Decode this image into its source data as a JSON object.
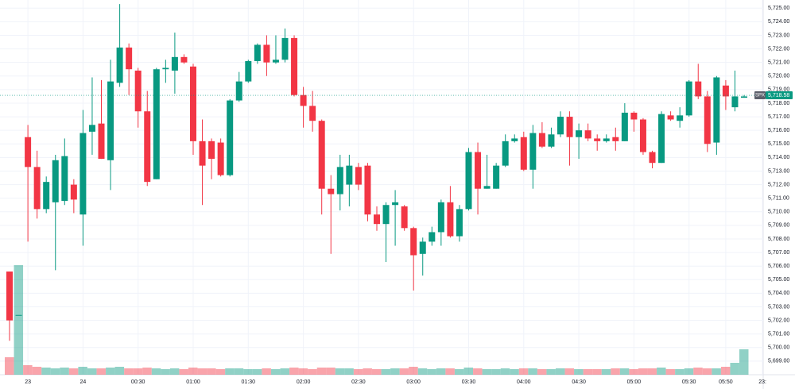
{
  "chart_data": {
    "type": "candlestick",
    "symbol": "SPX",
    "last_price": {
      "value": 5718.58,
      "label": "5,718.58"
    },
    "up_color": "#089981",
    "down_color": "#f23645",
    "grid": true,
    "categories": [
      null,
      null,
      "23",
      null,
      null,
      null,
      null,
      null,
      "24",
      null,
      null,
      null,
      null,
      null,
      "00:30",
      null,
      null,
      null,
      null,
      null,
      "01:00",
      null,
      null,
      null,
      null,
      null,
      "01:30",
      null,
      null,
      null,
      null,
      null,
      "02:00",
      null,
      null,
      null,
      null,
      null,
      "02:30",
      null,
      null,
      null,
      null,
      null,
      "03:00",
      null,
      null,
      null,
      null,
      null,
      "03:30",
      null,
      null,
      null,
      null,
      null,
      "04:00",
      null,
      null,
      null,
      null,
      null,
      "04:30",
      null,
      null,
      null,
      null,
      null,
      "05:00",
      null,
      null,
      null,
      null,
      null,
      "05:30",
      null,
      null,
      null,
      "05:50",
      null,
      null,
      null,
      "23:"
    ],
    "open": [
      5705.6,
      5702.4,
      5715.5,
      5713.3,
      5710.2,
      5710.7,
      5710.8,
      5712.0,
      5709.8,
      5715.9,
      5716.5,
      5713.8,
      5719.5,
      5722.1,
      5720.4,
      5717.4,
      5712.4,
      5720.5,
      5720.4,
      5721.4,
      5720.7,
      5715.2,
      5715.2,
      5715.1,
      5712.7,
      5718.2,
      5719.6,
      5721.1,
      5722.3,
      5721.0,
      5721.2,
      5722.8,
      5718.6,
      5717.8,
      5716.7,
      5711.7,
      5711.3,
      5712.0,
      5713.3,
      5713.4,
      5709.8,
      5709.1,
      5710.5,
      5710.4,
      5708.8,
      5706.9,
      5707.8,
      5708.5,
      5710.7,
      5708.2,
      5710.2,
      5714.4,
      5711.7,
      5711.7,
      5713.4,
      5715.2,
      5715.5,
      5713.1,
      5715.8,
      5714.8,
      5715.7,
      5717.0,
      5715.5,
      5716.0,
      5715.4,
      5715.2,
      5715.5,
      5715.2,
      5717.3,
      5716.8,
      5714.4,
      5713.6,
      5717.1,
      5716.7,
      5717.1,
      5719.6,
      5718.5,
      5715.1,
      5719.3,
      5717.7,
      5718.4,
      null,
      null
    ],
    "high": [
      5705.6,
      5702.4,
      5716.4,
      5714.5,
      5712.6,
      5714.2,
      5715.4,
      5712.4,
      5717.5,
      5719.9,
      5719.7,
      5721.2,
      5725.3,
      5722.4,
      5720.6,
      5718.9,
      5720.6,
      5721.2,
      5723.2,
      5721.6,
      5720.9,
      5716.8,
      5715.4,
      5715.4,
      5718.3,
      5720.3,
      5721.2,
      5722.4,
      5723.0,
      5723.0,
      5723.5,
      5723.0,
      5719.2,
      5718.9,
      5716.8,
      5712.7,
      5714.2,
      5714.2,
      5713.6,
      5713.6,
      5710.4,
      5710.7,
      5711.6,
      5710.5,
      5708.9,
      5708.1,
      5708.9,
      5710.9,
      5711.9,
      5710.5,
      5714.7,
      5715.1,
      5714.2,
      5713.6,
      5715.7,
      5715.7,
      5715.9,
      5716.4,
      5716.6,
      5716.2,
      5717.4,
      5717.4,
      5716.5,
      5716.5,
      5715.7,
      5715.7,
      5716.2,
      5718.0,
      5717.4,
      5716.9,
      5714.5,
      5717.4,
      5717.4,
      5717.7,
      5719.7,
      5720.9,
      5718.9,
      5720.0,
      5719.7,
      5720.4,
      5718.6,
      null,
      null
    ],
    "low": [
      5700.5,
      5702.4,
      5707.8,
      5709.5,
      5709.9,
      5705.7,
      5710.5,
      5709.9,
      5707.5,
      5714.2,
      5713.9,
      5711.6,
      5719.2,
      5718.6,
      5716.2,
      5711.9,
      5712.4,
      5719.5,
      5718.7,
      5720.9,
      5714.2,
      5710.5,
      5712.4,
      5712.6,
      5712.6,
      5718.1,
      5719.5,
      5720.9,
      5720.0,
      5720.9,
      5721.0,
      5718.5,
      5716.2,
      5715.9,
      5709.8,
      5706.9,
      5710.1,
      5710.4,
      5711.6,
      5709.3,
      5708.6,
      5706.3,
      5707.5,
      5708.6,
      5704.2,
      5705.3,
      5707.5,
      5707.5,
      5708.1,
      5707.8,
      5710.1,
      5709.8,
      5711.7,
      5711.7,
      5713.3,
      5715.1,
      5713.0,
      5711.7,
      5714.7,
      5714.7,
      5715.5,
      5713.4,
      5713.9,
      5715.2,
      5714.5,
      5715.1,
      5714.5,
      5715.2,
      5715.9,
      5714.2,
      5713.2,
      5713.6,
      5716.7,
      5716.2,
      5717.0,
      5718.3,
      5714.4,
      5714.2,
      5717.5,
      5717.4,
      5718.4,
      null,
      null
    ],
    "close": [
      5702.0,
      5702.4,
      5713.3,
      5710.2,
      5712.2,
      5713.8,
      5714.1,
      5710.9,
      5715.8,
      5716.4,
      5713.9,
      5719.6,
      5722.1,
      5720.5,
      5717.4,
      5712.2,
      5720.5,
      5720.6,
      5721.4,
      5721.0,
      5715.2,
      5713.4,
      5713.9,
      5712.7,
      5718.2,
      5719.6,
      5721.1,
      5722.3,
      5721.0,
      5721.2,
      5722.8,
      5718.6,
      5717.8,
      5716.7,
      5711.7,
      5711.3,
      5713.3,
      5713.4,
      5712.0,
      5709.8,
      5709.1,
      5710.5,
      5710.7,
      5708.8,
      5706.8,
      5707.8,
      5708.5,
      5710.7,
      5708.2,
      5710.2,
      5714.4,
      5711.7,
      5711.9,
      5713.4,
      5715.2,
      5715.4,
      5713.1,
      5715.8,
      5714.8,
      5715.7,
      5717.0,
      5715.5,
      5716.0,
      5715.4,
      5715.2,
      5715.4,
      5715.2,
      5717.3,
      5716.8,
      5714.4,
      5713.6,
      5717.2,
      5716.8,
      5717.1,
      5719.6,
      5718.5,
      5715.0,
      5719.9,
      5718.5,
      5718.5,
      5718.5,
      null,
      null
    ],
    "volume": [
      22,
      138,
      12,
      10,
      9,
      8,
      9,
      8,
      10,
      8,
      8,
      9,
      10,
      8,
      8,
      9,
      8,
      7,
      8,
      7,
      9,
      8,
      8,
      7,
      8,
      8,
      7,
      7,
      8,
      7,
      8,
      9,
      8,
      7,
      9,
      9,
      8,
      8,
      7,
      8,
      7,
      7,
      8,
      8,
      10,
      8,
      7,
      8,
      8,
      7,
      9,
      8,
      7,
      7,
      8,
      7,
      8,
      8,
      7,
      7,
      8,
      8,
      7,
      7,
      7,
      7,
      8,
      8,
      7,
      8,
      8,
      9,
      7,
      7,
      8,
      9,
      8,
      8,
      10,
      15,
      32,
      null,
      null
    ],
    "volume_lim": [
      0,
      150
    ],
    "ylim": [
      5698.0,
      5725.6
    ],
    "yticks": [
      {
        "value": 5699,
        "label": "5,699.00"
      },
      {
        "value": 5700,
        "label": "5,700.00"
      },
      {
        "value": 5701,
        "label": "5,701.00"
      },
      {
        "value": 5702,
        "label": "5,702.00"
      },
      {
        "value": 5703,
        "label": "5,703.00"
      },
      {
        "value": 5704,
        "label": "5,704.00"
      },
      {
        "value": 5705,
        "label": "5,705.00"
      },
      {
        "value": 5706,
        "label": "5,706.00"
      },
      {
        "value": 5707,
        "label": "5,707.00"
      },
      {
        "value": 5708,
        "label": "5,708.00"
      },
      {
        "value": 5709,
        "label": "5,709.00"
      },
      {
        "value": 5710,
        "label": "5,710.00"
      },
      {
        "value": 5711,
        "label": "5,711.00"
      },
      {
        "value": 5712,
        "label": "5,712.00"
      },
      {
        "value": 5713,
        "label": "5,713.00"
      },
      {
        "value": 5714,
        "label": "5,714.00"
      },
      {
        "value": 5715,
        "label": "5,715.00"
      },
      {
        "value": 5716,
        "label": "5,716.00"
      },
      {
        "value": 5717,
        "label": "5,717.00"
      },
      {
        "value": 5718,
        "label": "5,718.00"
      },
      {
        "value": 5719,
        "label": "5,719.00"
      },
      {
        "value": 5720,
        "label": "5,720.00"
      },
      {
        "value": 5721,
        "label": "5,721.00"
      },
      {
        "value": 5722,
        "label": "5,722.00"
      },
      {
        "value": 5723,
        "label": "5,723.00"
      },
      {
        "value": 5724,
        "label": "5,724.00"
      },
      {
        "value": 5725,
        "label": "5,725.00"
      }
    ]
  }
}
